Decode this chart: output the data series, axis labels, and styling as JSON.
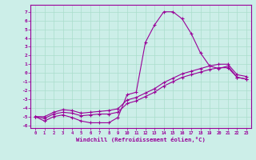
{
  "background_color": "#cceee8",
  "line_color": "#990099",
  "grid_color": "#aaddcc",
  "xlabel": "Windchill (Refroidissement éolien,°C)",
  "xlim": [
    -0.5,
    23.5
  ],
  "ylim": [
    -6.3,
    7.8
  ],
  "x_ticks": [
    0,
    1,
    2,
    3,
    4,
    5,
    6,
    7,
    8,
    9,
    10,
    11,
    12,
    13,
    14,
    15,
    16,
    17,
    18,
    19,
    20,
    21,
    22,
    23
  ],
  "y_ticks": [
    -6,
    -5,
    -4,
    -3,
    -2,
    -1,
    0,
    1,
    2,
    3,
    4,
    5,
    6,
    7
  ],
  "s1_x": [
    0,
    1,
    2,
    3,
    4,
    5,
    6,
    7,
    8,
    9,
    10,
    11,
    12,
    13,
    14,
    15,
    16,
    17,
    18,
    19,
    20,
    21,
    22,
    23
  ],
  "s1_y": [
    -5.0,
    -5.5,
    -5.0,
    -4.8,
    -5.1,
    -5.5,
    -5.7,
    -5.7,
    -5.7,
    -5.1,
    -2.5,
    -2.2,
    3.5,
    5.5,
    7.0,
    7.0,
    6.2,
    4.5,
    2.3,
    0.8,
    0.5,
    0.8,
    -0.5,
    -0.7
  ],
  "s2_x": [
    0,
    1,
    2,
    3,
    4,
    5,
    6,
    7,
    8,
    9,
    10,
    11,
    12,
    13,
    14,
    15,
    16,
    17,
    18,
    19,
    20,
    21,
    22,
    23
  ],
  "s2_y": [
    -5.0,
    -5.2,
    -4.7,
    -4.5,
    -4.6,
    -4.9,
    -4.8,
    -4.7,
    -4.7,
    -4.5,
    -3.5,
    -3.2,
    -2.7,
    -2.2,
    -1.5,
    -1.0,
    -0.5,
    -0.2,
    0.1,
    0.4,
    0.6,
    0.6,
    -0.5,
    -0.7
  ],
  "s3_x": [
    0,
    1,
    2,
    3,
    4,
    5,
    6,
    7,
    8,
    9,
    10,
    11,
    12,
    13,
    14,
    15,
    16,
    17,
    18,
    19,
    20,
    21,
    22,
    23
  ],
  "s3_y": [
    -5.0,
    -5.0,
    -4.5,
    -4.2,
    -4.3,
    -4.6,
    -4.5,
    -4.4,
    -4.3,
    -4.1,
    -3.1,
    -2.8,
    -2.3,
    -1.8,
    -1.1,
    -0.6,
    -0.1,
    0.2,
    0.5,
    0.8,
    1.0,
    1.0,
    -0.2,
    -0.4
  ]
}
